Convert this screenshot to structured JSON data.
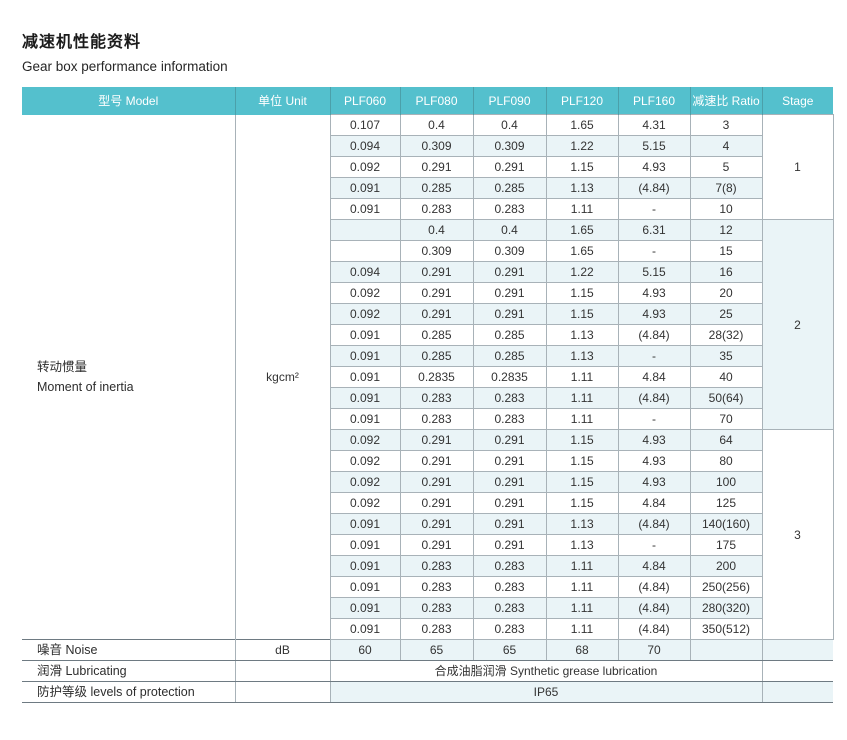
{
  "page": {
    "title_zh": "减速机性能资料",
    "title_en": "Gear box performance information"
  },
  "colors": {
    "header_bg": "#54c0cd",
    "header_text": "#ffffff",
    "row_tint": "#eaf4f7",
    "cell_border": "#a8b2b8",
    "section_line": "#6e7a82"
  },
  "table": {
    "headers": [
      "型号 Model",
      "单位 Unit",
      "PLF060",
      "PLF080",
      "PLF090",
      "PLF120",
      "PLF160",
      "减速比 Ratio",
      "Stage"
    ],
    "inertia": {
      "label_zh": "转动惯量",
      "label_en": "Moment of inertia",
      "unit": "kgcm²"
    },
    "stages": [
      {
        "stage": "1",
        "rows": [
          [
            "0.107",
            "0.4",
            "0.4",
            "1.65",
            "4.31",
            "3"
          ],
          [
            "0.094",
            "0.309",
            "0.309",
            "1.22",
            "5.15",
            "4"
          ],
          [
            "0.092",
            "0.291",
            "0.291",
            "1.15",
            "4.93",
            "5"
          ],
          [
            "0.091",
            "0.285",
            "0.285",
            "1.13",
            "(4.84)",
            "7(8)"
          ],
          [
            "0.091",
            "0.283",
            "0.283",
            "1.11",
            "-",
            "10"
          ]
        ]
      },
      {
        "stage": "2",
        "rows": [
          [
            "",
            "0.4",
            "0.4",
            "1.65",
            "6.31",
            "12"
          ],
          [
            "",
            "0.309",
            "0.309",
            "1.65",
            "-",
            "15"
          ],
          [
            "0.094",
            "0.291",
            "0.291",
            "1.22",
            "5.15",
            "16"
          ],
          [
            "0.092",
            "0.291",
            "0.291",
            "1.15",
            "4.93",
            "20"
          ],
          [
            "0.092",
            "0.291",
            "0.291",
            "1.15",
            "4.93",
            "25"
          ],
          [
            "0.091",
            "0.285",
            "0.285",
            "1.13",
            "(4.84)",
            "28(32)"
          ],
          [
            "0.091",
            "0.285",
            "0.285",
            "1.13",
            "-",
            "35"
          ],
          [
            "0.091",
            "0.2835",
            "0.2835",
            "1.11",
            "4.84",
            "40"
          ],
          [
            "0.091",
            "0.283",
            "0.283",
            "1.11",
            "(4.84)",
            "50(64)"
          ],
          [
            "0.091",
            "0.283",
            "0.283",
            "1.11",
            "-",
            "70"
          ]
        ]
      },
      {
        "stage": "3",
        "rows": [
          [
            "0.092",
            "0.291",
            "0.291",
            "1.15",
            "4.93",
            "64"
          ],
          [
            "0.092",
            "0.291",
            "0.291",
            "1.15",
            "4.93",
            "80"
          ],
          [
            "0.092",
            "0.291",
            "0.291",
            "1.15",
            "4.93",
            "100"
          ],
          [
            "0.092",
            "0.291",
            "0.291",
            "1.15",
            "4.84",
            "125"
          ],
          [
            "0.091",
            "0.291",
            "0.291",
            "1.13",
            "(4.84)",
            "140(160)"
          ],
          [
            "0.091",
            "0.291",
            "0.291",
            "1.13",
            "-",
            "175"
          ],
          [
            "0.091",
            "0.283",
            "0.283",
            "1.11",
            "4.84",
            "200"
          ],
          [
            "0.091",
            "0.283",
            "0.283",
            "1.11",
            "(4.84)",
            "250(256)"
          ],
          [
            "0.091",
            "0.283",
            "0.283",
            "1.11",
            "(4.84)",
            "280(320)"
          ],
          [
            "0.091",
            "0.283",
            "0.283",
            "1.11",
            "(4.84)",
            "350(512)"
          ]
        ]
      }
    ],
    "noise": {
      "label": "噪音 Noise",
      "unit": "dB",
      "values": [
        "60",
        "65",
        "65",
        "68",
        "70"
      ]
    },
    "lubricating": {
      "label": "润滑 Lubricating",
      "value": "合成油脂润滑 Synthetic grease lubrication"
    },
    "protection": {
      "label": "防护等级 levels of protection",
      "value": "IP65"
    }
  }
}
